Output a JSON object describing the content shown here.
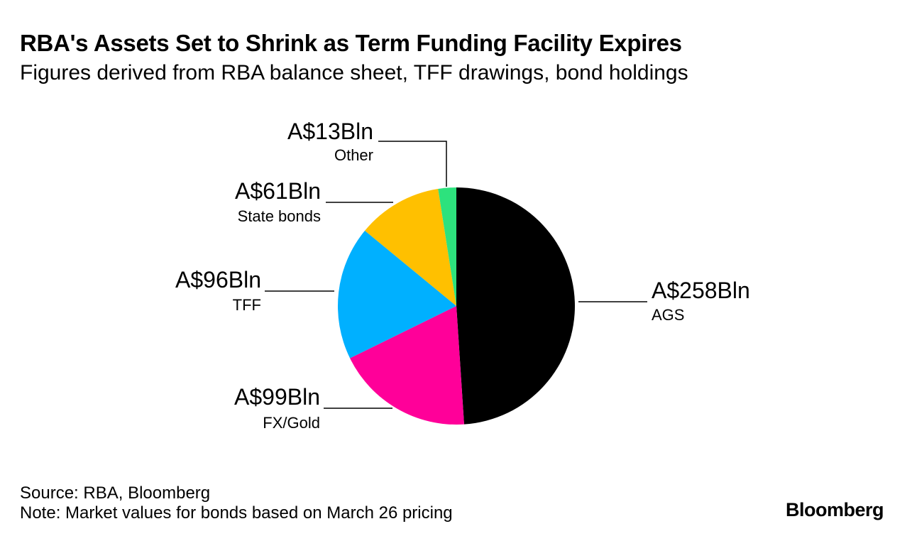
{
  "header": {
    "title": "RBA's Assets Set to Shrink as Term Funding Facility Expires",
    "subtitle": "Figures derived from RBA balance sheet, TFF drawings, bond holdings"
  },
  "chart_data": {
    "type": "pie",
    "start_angle_deg": 0,
    "direction": "clockwise",
    "slices": [
      {
        "label": "AGS",
        "value": 258,
        "value_label": "A$258Bln",
        "color": "#000000"
      },
      {
        "label": "FX/Gold",
        "value": 99,
        "value_label": "A$99Bln",
        "color": "#ff0099"
      },
      {
        "label": "TFF",
        "value": 96,
        "value_label": "A$96Bln",
        "color": "#00b0ff"
      },
      {
        "label": "State bonds",
        "value": 61,
        "value_label": "A$61Bln",
        "color": "#ffc000"
      },
      {
        "label": "Other",
        "value": 13,
        "value_label": "A$13Bln",
        "color": "#2de27d"
      }
    ]
  },
  "footer": {
    "source": "Source: RBA, Bloomberg",
    "note": "Note: Market values for bonds based on March 26 pricing",
    "brand": "Bloomberg"
  }
}
